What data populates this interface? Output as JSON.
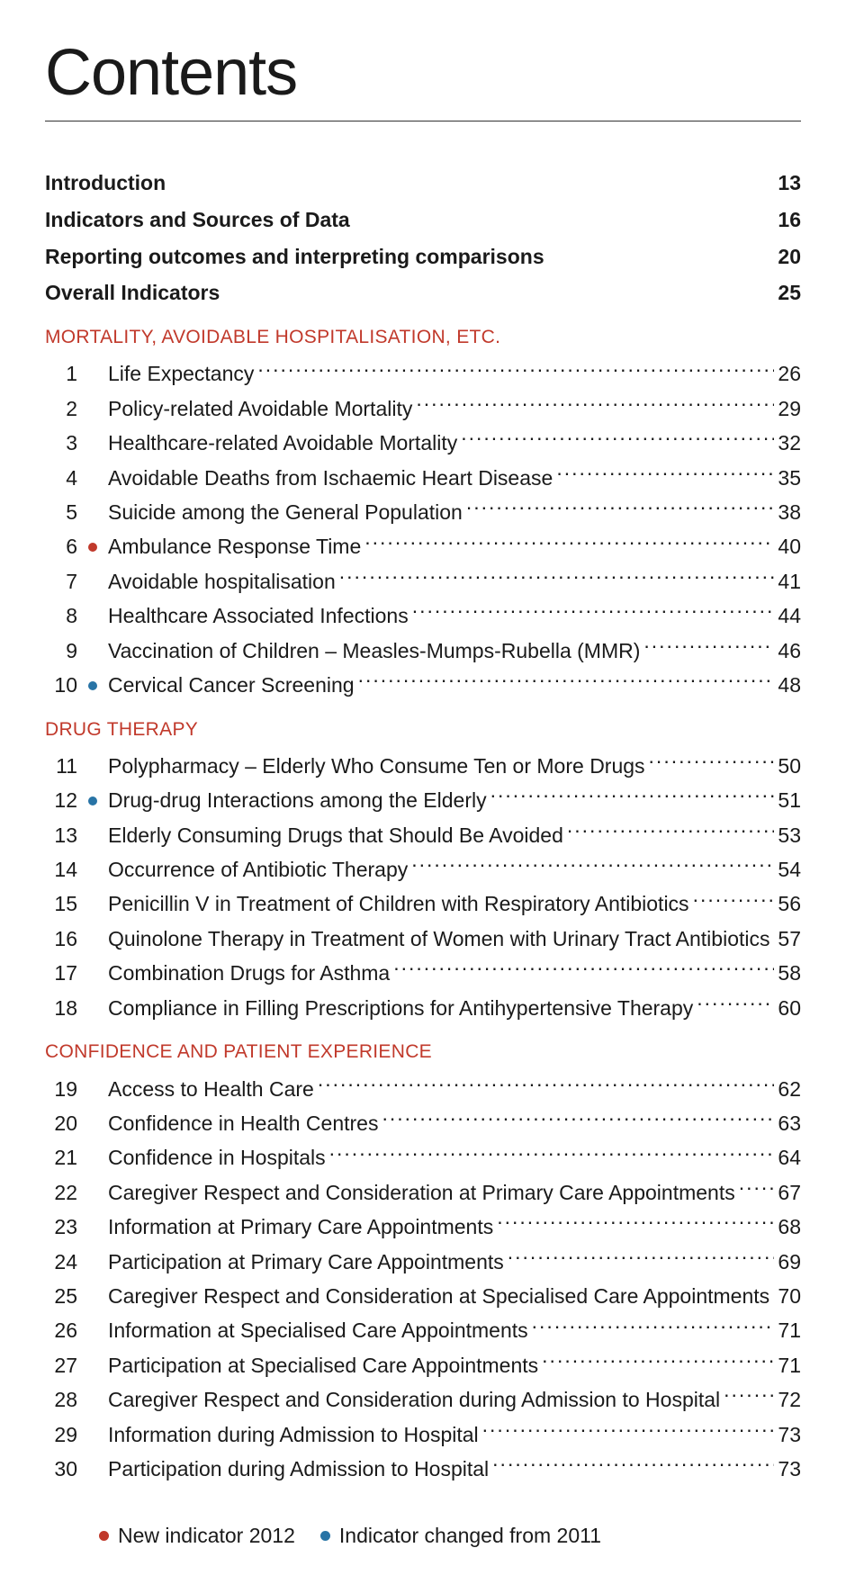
{
  "title": "Contents",
  "colors": {
    "section_head": "#c1392b",
    "bullet_red": "#c0392b",
    "bullet_blue": "#2874a6",
    "text": "#1a1a1a",
    "rule": "#333333"
  },
  "intro_rows": [
    {
      "label": "Introduction",
      "page": "13"
    },
    {
      "label": "Indicators and Sources of Data",
      "page": "16"
    },
    {
      "label": "Reporting outcomes and interpreting comparisons",
      "page": "20"
    },
    {
      "label": "Overall Indicators",
      "page": "25"
    }
  ],
  "sections": [
    {
      "heading": "MORTALITY, AVOIDABLE HOSPITALISATION, ETC.",
      "entries": [
        {
          "num": "1",
          "bullet": null,
          "label": "Life Expectancy",
          "page": "26"
        },
        {
          "num": "2",
          "bullet": null,
          "label": "Policy-related Avoidable Mortality",
          "page": "29"
        },
        {
          "num": "3",
          "bullet": null,
          "label": "Healthcare-related Avoidable Mortality",
          "page": "32"
        },
        {
          "num": "4",
          "bullet": null,
          "label": "Avoidable Deaths from Ischaemic Heart Disease",
          "page": "35"
        },
        {
          "num": "5",
          "bullet": null,
          "label": "Suicide among the General Population",
          "page": "38"
        },
        {
          "num": "6",
          "bullet": "red",
          "label": "Ambulance Response Time",
          "page": "40"
        },
        {
          "num": "7",
          "bullet": null,
          "label": "Avoidable hospitalisation",
          "page": "41"
        },
        {
          "num": "8",
          "bullet": null,
          "label": "Healthcare Associated Infections",
          "page": "44"
        },
        {
          "num": "9",
          "bullet": null,
          "label": "Vaccination of Children – Measles-Mumps-Rubella (MMR)",
          "page": "46"
        },
        {
          "num": "10",
          "bullet": "blue",
          "label": "Cervical Cancer Screening",
          "page": "48"
        }
      ]
    },
    {
      "heading": "DRUG THERAPY",
      "entries": [
        {
          "num": "11",
          "bullet": null,
          "label": "Polypharmacy – Elderly Who Consume Ten or More Drugs",
          "page": "50"
        },
        {
          "num": "12",
          "bullet": "blue",
          "label": "Drug-drug Interactions among the Elderly",
          "page": "51"
        },
        {
          "num": "13",
          "bullet": null,
          "label": "Elderly Consuming Drugs that Should Be Avoided",
          "page": "53"
        },
        {
          "num": "14",
          "bullet": null,
          "label": "Occurrence of Antibiotic Therapy",
          "page": "54"
        },
        {
          "num": "15",
          "bullet": null,
          "label": "Penicillin V in Treatment of Children with Respiratory Antibiotics",
          "page": "56"
        },
        {
          "num": "16",
          "bullet": null,
          "label": "Quinolone Therapy in Treatment of Women with Urinary Tract Antibiotics",
          "page": "57"
        },
        {
          "num": "17",
          "bullet": null,
          "label": "Combination Drugs for Asthma",
          "page": "58"
        },
        {
          "num": "18",
          "bullet": null,
          "label": "Compliance in Filling Prescriptions for Antihypertensive Therapy",
          "page": "60"
        }
      ]
    },
    {
      "heading": "CONFIDENCE AND PATIENT EXPERIENCE",
      "entries": [
        {
          "num": "19",
          "bullet": null,
          "label": "Access to Health Care",
          "page": "62"
        },
        {
          "num": "20",
          "bullet": null,
          "label": "Confidence in Health Centres",
          "page": "63"
        },
        {
          "num": "21",
          "bullet": null,
          "label": "Confidence in Hospitals",
          "page": "64"
        },
        {
          "num": "22",
          "bullet": null,
          "label": "Caregiver Respect and Consideration at Primary Care Appointments",
          "page": "67"
        },
        {
          "num": "23",
          "bullet": null,
          "label": "Information at Primary Care Appointments",
          "page": "68"
        },
        {
          "num": "24",
          "bullet": null,
          "label": "Participation at Primary Care Appointments",
          "page": "69"
        },
        {
          "num": "25",
          "bullet": null,
          "label": "Caregiver Respect and Consideration at Specialised Care Appointments",
          "page": "70"
        },
        {
          "num": "26",
          "bullet": null,
          "label": "Information at Specialised Care Appointments",
          "page": "71"
        },
        {
          "num": "27",
          "bullet": null,
          "label": "Participation at Specialised Care Appointments",
          "page": "71"
        },
        {
          "num": "28",
          "bullet": null,
          "label": "Caregiver Respect and Consideration during Admission to Hospital",
          "page": "72"
        },
        {
          "num": "29",
          "bullet": null,
          "label": "Information during Admission to Hospital",
          "page": "73"
        },
        {
          "num": "30",
          "bullet": null,
          "label": "Participation during Admission to Hospital",
          "page": "73"
        }
      ]
    }
  ],
  "legend": [
    {
      "color_key": "bullet_red",
      "label": "New indicator 2012"
    },
    {
      "color_key": "bullet_blue",
      "label": "Indicator changed from 2011"
    }
  ]
}
